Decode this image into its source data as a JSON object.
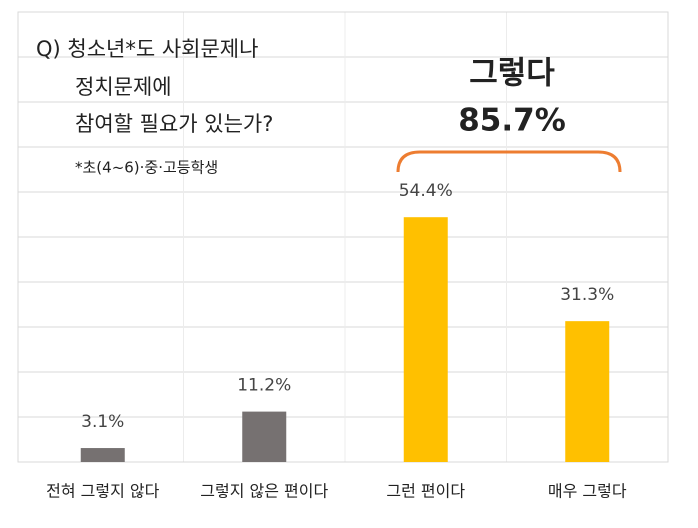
{
  "chart_data": {
    "type": "bar",
    "title_lines": [
      "Q) 청소년*도 사회문제나",
      "정치문제에",
      "참여할 필요가 있는가?"
    ],
    "subtitle": "*초(4~6)·중·고등학생",
    "annotation": {
      "text": "그렇다",
      "value_label": "85.7%"
    },
    "categories": [
      "전혀 그렇지 않다",
      "그렇지 않은 편이다",
      "그런 편이다",
      "매우 그렇다"
    ],
    "values": [
      3.1,
      11.2,
      54.4,
      31.3
    ],
    "value_labels": [
      "3.1%",
      "11.2%",
      "54.4%",
      "31.3%"
    ],
    "colors": [
      "#767171",
      "#767171",
      "#ffc000",
      "#ffc000"
    ],
    "ylim": [
      0,
      100
    ],
    "yticks": [
      0,
      10,
      20,
      30,
      40,
      50,
      60,
      70,
      80,
      90,
      100
    ],
    "tick_labels": false,
    "grid": true
  }
}
